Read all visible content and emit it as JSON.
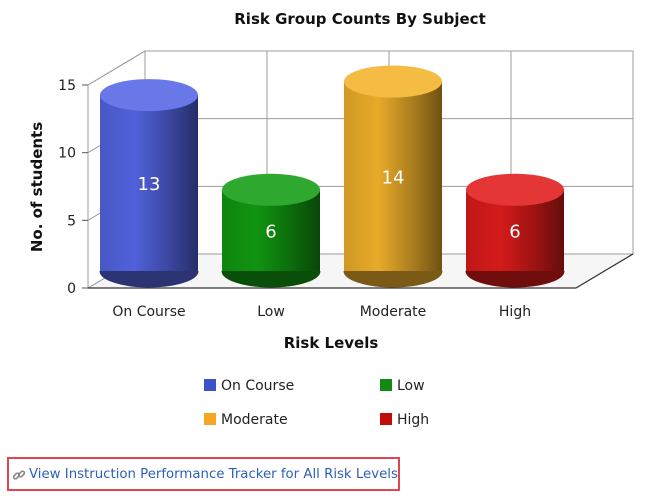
{
  "chart_data": {
    "type": "bar",
    "title": "Risk Group Counts By Subject",
    "xlabel": "Risk Levels",
    "ylabel": "No. of students",
    "categories": [
      "On Course",
      "Low",
      "Moderate",
      "High"
    ],
    "values": [
      13,
      6,
      14,
      6
    ],
    "ylim": [
      0,
      15
    ],
    "yticks": [
      "0",
      "5",
      "10",
      "15"
    ],
    "data_labels": [
      "13",
      "6",
      "14",
      "6"
    ],
    "colors": [
      "#5566e6",
      "#119c11",
      "#f4b32b",
      "#e01b1b"
    ],
    "grid": true,
    "style": "3d-cylinder",
    "legend": {
      "placement": "bottom",
      "entries": [
        {
          "label": "On Course",
          "color": "#3a53c9"
        },
        {
          "label": "Low",
          "color": "#128a12"
        },
        {
          "label": "Moderate",
          "color": "#f5a623"
        },
        {
          "label": "High",
          "color": "#c20c0c"
        }
      ]
    }
  },
  "link": {
    "text": "View Instruction Performance Tracker for All Risk Levels",
    "icon": "link-icon",
    "color": "#2d60b7"
  }
}
